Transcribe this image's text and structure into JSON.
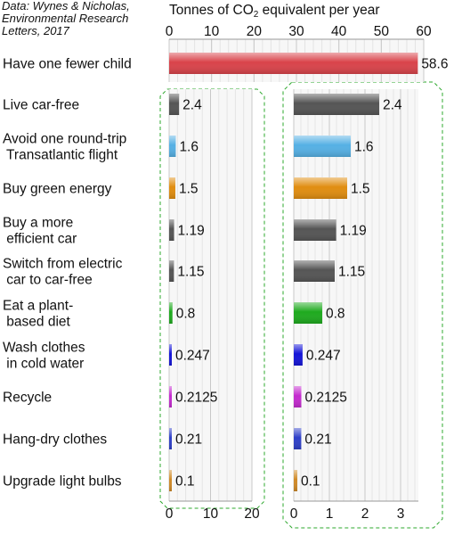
{
  "source_note": [
    "Data: Wynes & Nicholas,",
    "Environmental Research",
    "Letters, 2017"
  ],
  "title": {
    "before": "Tonnes of CO",
    "subscript": "2",
    "after": " equivalent per year"
  },
  "chart_data": {
    "type": "bar",
    "orientation": "horizontal",
    "title": "Tonnes of CO2 equivalent per year",
    "categories": [
      [
        "Have one fewer child"
      ],
      [
        "Live car-free"
      ],
      [
        "Avoid one round-trip",
        " Transatlantic flight"
      ],
      [
        "Buy green energy"
      ],
      [
        "Buy a more",
        " efficient car"
      ],
      [
        "Switch from electric",
        " car to car-free"
      ],
      [
        "Eat a plant-",
        " based diet"
      ],
      [
        "Wash clothes",
        " in cold water"
      ],
      [
        "Recycle"
      ],
      [
        "Hang-dry clothes"
      ],
      [
        "Upgrade light bulbs"
      ]
    ],
    "values": [
      58.6,
      2.4,
      1.6,
      1.5,
      1.19,
      1.15,
      0.8,
      0.247,
      0.2125,
      0.21,
      0.1
    ],
    "value_labels": [
      "58.6",
      "2.4",
      "1.6",
      "1.5",
      "1.19",
      "1.15",
      "0.8",
      "0.247",
      "0.2125",
      "0.21",
      "0.1"
    ],
    "colors": [
      "#d9434a",
      "#555555",
      "#55b0e4",
      "#e08d10",
      "#555555",
      "#555555",
      "#1eaa1e",
      "#1515d8",
      "#c42bcf",
      "#2f40c8",
      "#d08a28"
    ],
    "panels": [
      {
        "name": "top",
        "xlim": [
          0,
          60
        ],
        "xticks": [
          0,
          10,
          20,
          30,
          40,
          50,
          60
        ],
        "bars": [
          0
        ],
        "axis_position": "top"
      },
      {
        "name": "lower-left",
        "xlim": [
          0,
          20
        ],
        "xticks": [
          0,
          10,
          20
        ],
        "bars": [
          1,
          2,
          3,
          4,
          5,
          6,
          7,
          8,
          9,
          10
        ],
        "axis_position": "bottom"
      },
      {
        "name": "lower-right",
        "xlim": [
          0,
          3.5
        ],
        "xticks": [
          0,
          1,
          2,
          3
        ],
        "bars": [
          1,
          2,
          3,
          4,
          5,
          6,
          7,
          8,
          9,
          10
        ],
        "axis_position": "bottom"
      }
    ],
    "grid": true,
    "legend": "none"
  }
}
